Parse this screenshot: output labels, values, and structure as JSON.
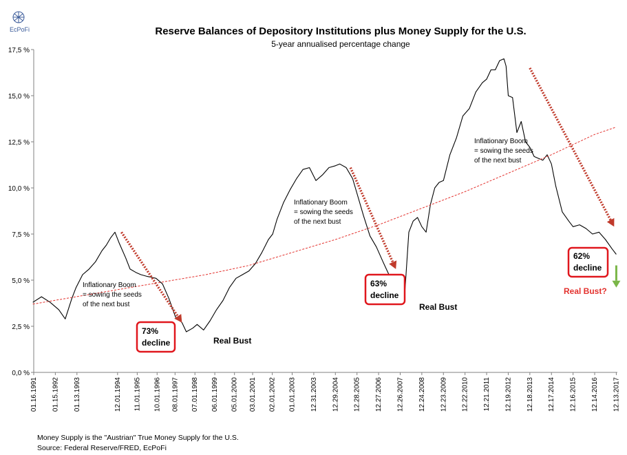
{
  "logo": {
    "text": "EcPoFi"
  },
  "footnote": {
    "line1": "Money Supply is the \"Austrian\" True Money Supply for the U.S.",
    "line2": "Source: Federal Reserve/FRED,  EcPoFi"
  },
  "chart_data": {
    "type": "line",
    "title": "Reserve Balances of Depository Institutions plus Money Supply for the U.S.",
    "subtitle": "5-year annualised percentage change",
    "xlabel": "",
    "ylabel": "",
    "ylim": [
      0,
      17.5
    ],
    "y_ticks": [
      0,
      2.5,
      5.0,
      7.5,
      10.0,
      12.5,
      15.0,
      17.5
    ],
    "y_tick_labels": [
      "0,0 %",
      "2,5 %",
      "5,0 %",
      "7,5 %",
      "10,0 %",
      "12,5 %",
      "15,0 %",
      "17,5 %"
    ],
    "x_range": [
      1991.04,
      2018.05
    ],
    "x_tick_labels": [
      "01.16.1991",
      "01.15.1992",
      "01.13.1993",
      "12.01.1994",
      "11.01.1995",
      "10.01.1996",
      "08.01.1997",
      "07.01.1998",
      "06.01.1999",
      "05.01.2000",
      "03.01.2001",
      "02.01.2002",
      "01.01.2003",
      "12.31.2003",
      "12.29.2004",
      "12.28.2005",
      "12.27.2006",
      "12.26.2007",
      "12.24.2008",
      "12.23.2009",
      "12.22.2010",
      "12.21.2011",
      "12.19.2012",
      "12.18.2013",
      "12.17.2014",
      "12.16.2015",
      "12.14.2016",
      "12.13.2017"
    ],
    "x_tick_values": [
      1991.04,
      1992.04,
      1993.04,
      1994.92,
      1995.83,
      1996.75,
      1997.58,
      1998.5,
      1999.42,
      2000.33,
      2001.17,
      2002.08,
      2003.0,
      2004.0,
      2005.0,
      2006.0,
      2007.0,
      2008.0,
      2009.0,
      2010.0,
      2011.0,
      2012.0,
      2013.0,
      2014.0,
      2015.0,
      2016.0,
      2017.0,
      2018.0
    ],
    "grid": false,
    "legend": "none",
    "series": [
      {
        "color": "#000000",
        "x": [
          1991.0,
          1991.4,
          1991.8,
          1992.2,
          1992.5,
          1992.8,
          1993.0,
          1993.3,
          1993.6,
          1993.9,
          1994.2,
          1994.4,
          1994.6,
          1994.8,
          1995.0,
          1995.3,
          1995.5,
          1995.8,
          1996.0,
          1996.3,
          1996.7,
          1997.0,
          1997.3,
          1997.6,
          1997.9,
          1998.1,
          1998.4,
          1998.6,
          1998.9,
          1999.2,
          1999.5,
          1999.8,
          2000.1,
          2000.4,
          2000.7,
          2001.0,
          2001.3,
          2001.6,
          2001.9,
          2002.1,
          2002.3,
          2002.6,
          2002.9,
          2003.2,
          2003.5,
          2003.8,
          2004.1,
          2004.4,
          2004.7,
          2005.0,
          2005.2,
          2005.5,
          2005.8,
          2006.0,
          2006.3,
          2006.6,
          2006.9,
          2007.2,
          2007.4,
          2007.6,
          2007.8,
          2008.0,
          2008.2,
          2008.4,
          2008.6,
          2008.8,
          2009.0,
          2009.2,
          2009.4,
          2009.6,
          2009.8,
          2010.0,
          2010.3,
          2010.6,
          2010.9,
          2011.2,
          2011.5,
          2011.8,
          2012.0,
          2012.2,
          2012.4,
          2012.6,
          2012.8,
          2012.9,
          2013.0,
          2013.2,
          2013.4,
          2013.6,
          2013.8,
          2014.0,
          2014.2,
          2014.4,
          2014.6,
          2014.8,
          2015.0,
          2015.2,
          2015.5,
          2015.8,
          2016.0,
          2016.3,
          2016.6,
          2016.9,
          2017.2,
          2017.5,
          2017.8,
          2018.0
        ],
        "values": [
          3.8,
          4.1,
          3.8,
          3.4,
          2.9,
          4.0,
          4.6,
          5.3,
          5.6,
          6.0,
          6.6,
          6.9,
          7.3,
          7.6,
          7.0,
          6.2,
          5.6,
          5.4,
          5.3,
          5.2,
          5.1,
          4.8,
          4.0,
          3.0,
          2.7,
          2.2,
          2.4,
          2.6,
          2.3,
          2.8,
          3.4,
          3.9,
          4.6,
          5.1,
          5.3,
          5.5,
          5.9,
          6.5,
          7.2,
          7.5,
          8.3,
          9.2,
          9.9,
          10.5,
          11.0,
          11.1,
          10.4,
          10.7,
          11.1,
          11.2,
          11.3,
          11.1,
          10.5,
          9.7,
          8.5,
          7.4,
          6.8,
          6.0,
          5.5,
          5.0,
          4.7,
          4.5,
          4.1,
          7.6,
          8.2,
          8.4,
          7.9,
          7.6,
          9.1,
          10.0,
          10.3,
          10.4,
          11.8,
          12.7,
          13.9,
          14.3,
          15.2,
          15.7,
          15.9,
          16.4,
          16.4,
          16.9,
          17.0,
          16.6,
          15.0,
          14.9,
          13.0,
          13.6,
          12.5,
          12.2,
          11.7,
          11.6,
          11.5,
          11.8,
          11.3,
          10.1,
          8.7,
          8.2,
          7.9,
          8.0,
          7.8,
          7.5,
          7.6,
          7.2,
          6.7,
          6.4
        ]
      },
      {
        "color": "#e3312d",
        "style": "dashed",
        "x": [
          1991.0,
          1993.0,
          1995.0,
          1997.0,
          1999.0,
          2001.0,
          2003.0,
          2005.0,
          2007.0,
          2009.0,
          2011.0,
          2013.0,
          2015.0,
          2017.0,
          2018.0
        ],
        "values": [
          3.7,
          4.1,
          4.5,
          4.9,
          5.3,
          5.8,
          6.5,
          7.2,
          8.0,
          8.9,
          9.8,
          10.8,
          11.8,
          12.9,
          13.3
        ]
      }
    ],
    "arrows": [
      {
        "color": "#c03a2b",
        "x": [
          1995.1,
          1997.9
        ],
        "values": [
          7.6,
          2.7
        ]
      },
      {
        "color": "#c03a2b",
        "x": [
          2005.7,
          2007.8
        ],
        "values": [
          11.1,
          5.6
        ]
      },
      {
        "color": "#c03a2b",
        "x": [
          2014.0,
          2017.9
        ],
        "values": [
          16.5,
          7.9
        ]
      },
      {
        "color": "#7ab648",
        "x": [
          2018.0,
          2018.0
        ],
        "values": [
          5.8,
          4.6
        ]
      }
    ],
    "annotations": [
      {
        "id": "boom1",
        "lines": [
          "Inflationary Boom",
          "= sowing the seeds",
          "of the next bust"
        ]
      },
      {
        "id": "boom2",
        "lines": [
          "Inflationary Boom",
          "= sowing the seeds",
          "of the next bust"
        ]
      },
      {
        "id": "boom3",
        "lines": [
          "Inflationary Boom",
          "= sowing the seeds",
          "of the next bust"
        ]
      },
      {
        "id": "decl1",
        "lines": [
          "73%",
          "decline"
        ]
      },
      {
        "id": "decl2",
        "lines": [
          "63%",
          "decline"
        ]
      },
      {
        "id": "decl3",
        "lines": [
          "62%",
          "decline"
        ]
      },
      {
        "id": "bust1",
        "text": "Real Bust"
      },
      {
        "id": "bust2",
        "text": "Real Bust"
      },
      {
        "id": "bust3",
        "text": "Real Bust?"
      }
    ],
    "colors": {
      "decline_box": "#e0161c",
      "question": "#e3312d",
      "green_arrow": "#7ab648"
    }
  }
}
